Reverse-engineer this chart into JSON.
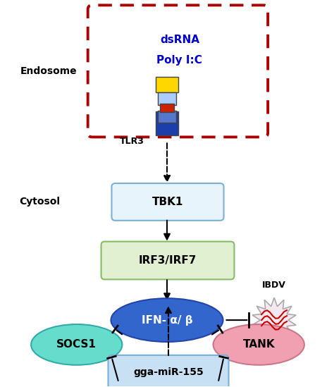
{
  "background_color": "#ffffff",
  "fig_width": 4.74,
  "fig_height": 5.49,
  "endosome_label": "Endosome",
  "cytosol_label": "Cytosol",
  "dsrna_line1": "dsRNA",
  "dsrna_line2": "Poly I:C",
  "tlr3_label": "TLR3",
  "tbk1_label": "TBK1",
  "irf_label": "IRF3/IRF7",
  "ifn_label": "IFN- α/ β",
  "socs1_label": "SOCS1",
  "tank_label": "TANK",
  "mir_label": "gga-miR-155",
  "ibdv_label": "IBDV",
  "endosome_box_color": "#aa0000",
  "tbk1_face_color": "#e8f4fb",
  "tbk1_edge_color": "#7ab0d4",
  "irf_face_color": "#e0f0d0",
  "irf_edge_color": "#88bb66",
  "ifn_face_color": "#3366cc",
  "ifn_edge_color": "#2244aa",
  "socs1_face_color": "#66ddcc",
  "socs1_edge_color": "#33aaaa",
  "tank_face_color": "#f0a0b0",
  "tank_edge_color": "#cc7788",
  "mir_face_color": "#c8e0f4",
  "mir_edge_color": "#7ab0d4",
  "ibdv_face_color": "#f5e8f0",
  "ibdv_edge_color": "#aaaaaa",
  "tlr_top_color": "#ffd700",
  "tlr_mid_color": "#cc2200",
  "tlr_bot_color": "#1a3faa",
  "dsrna_color": "#0000cc"
}
